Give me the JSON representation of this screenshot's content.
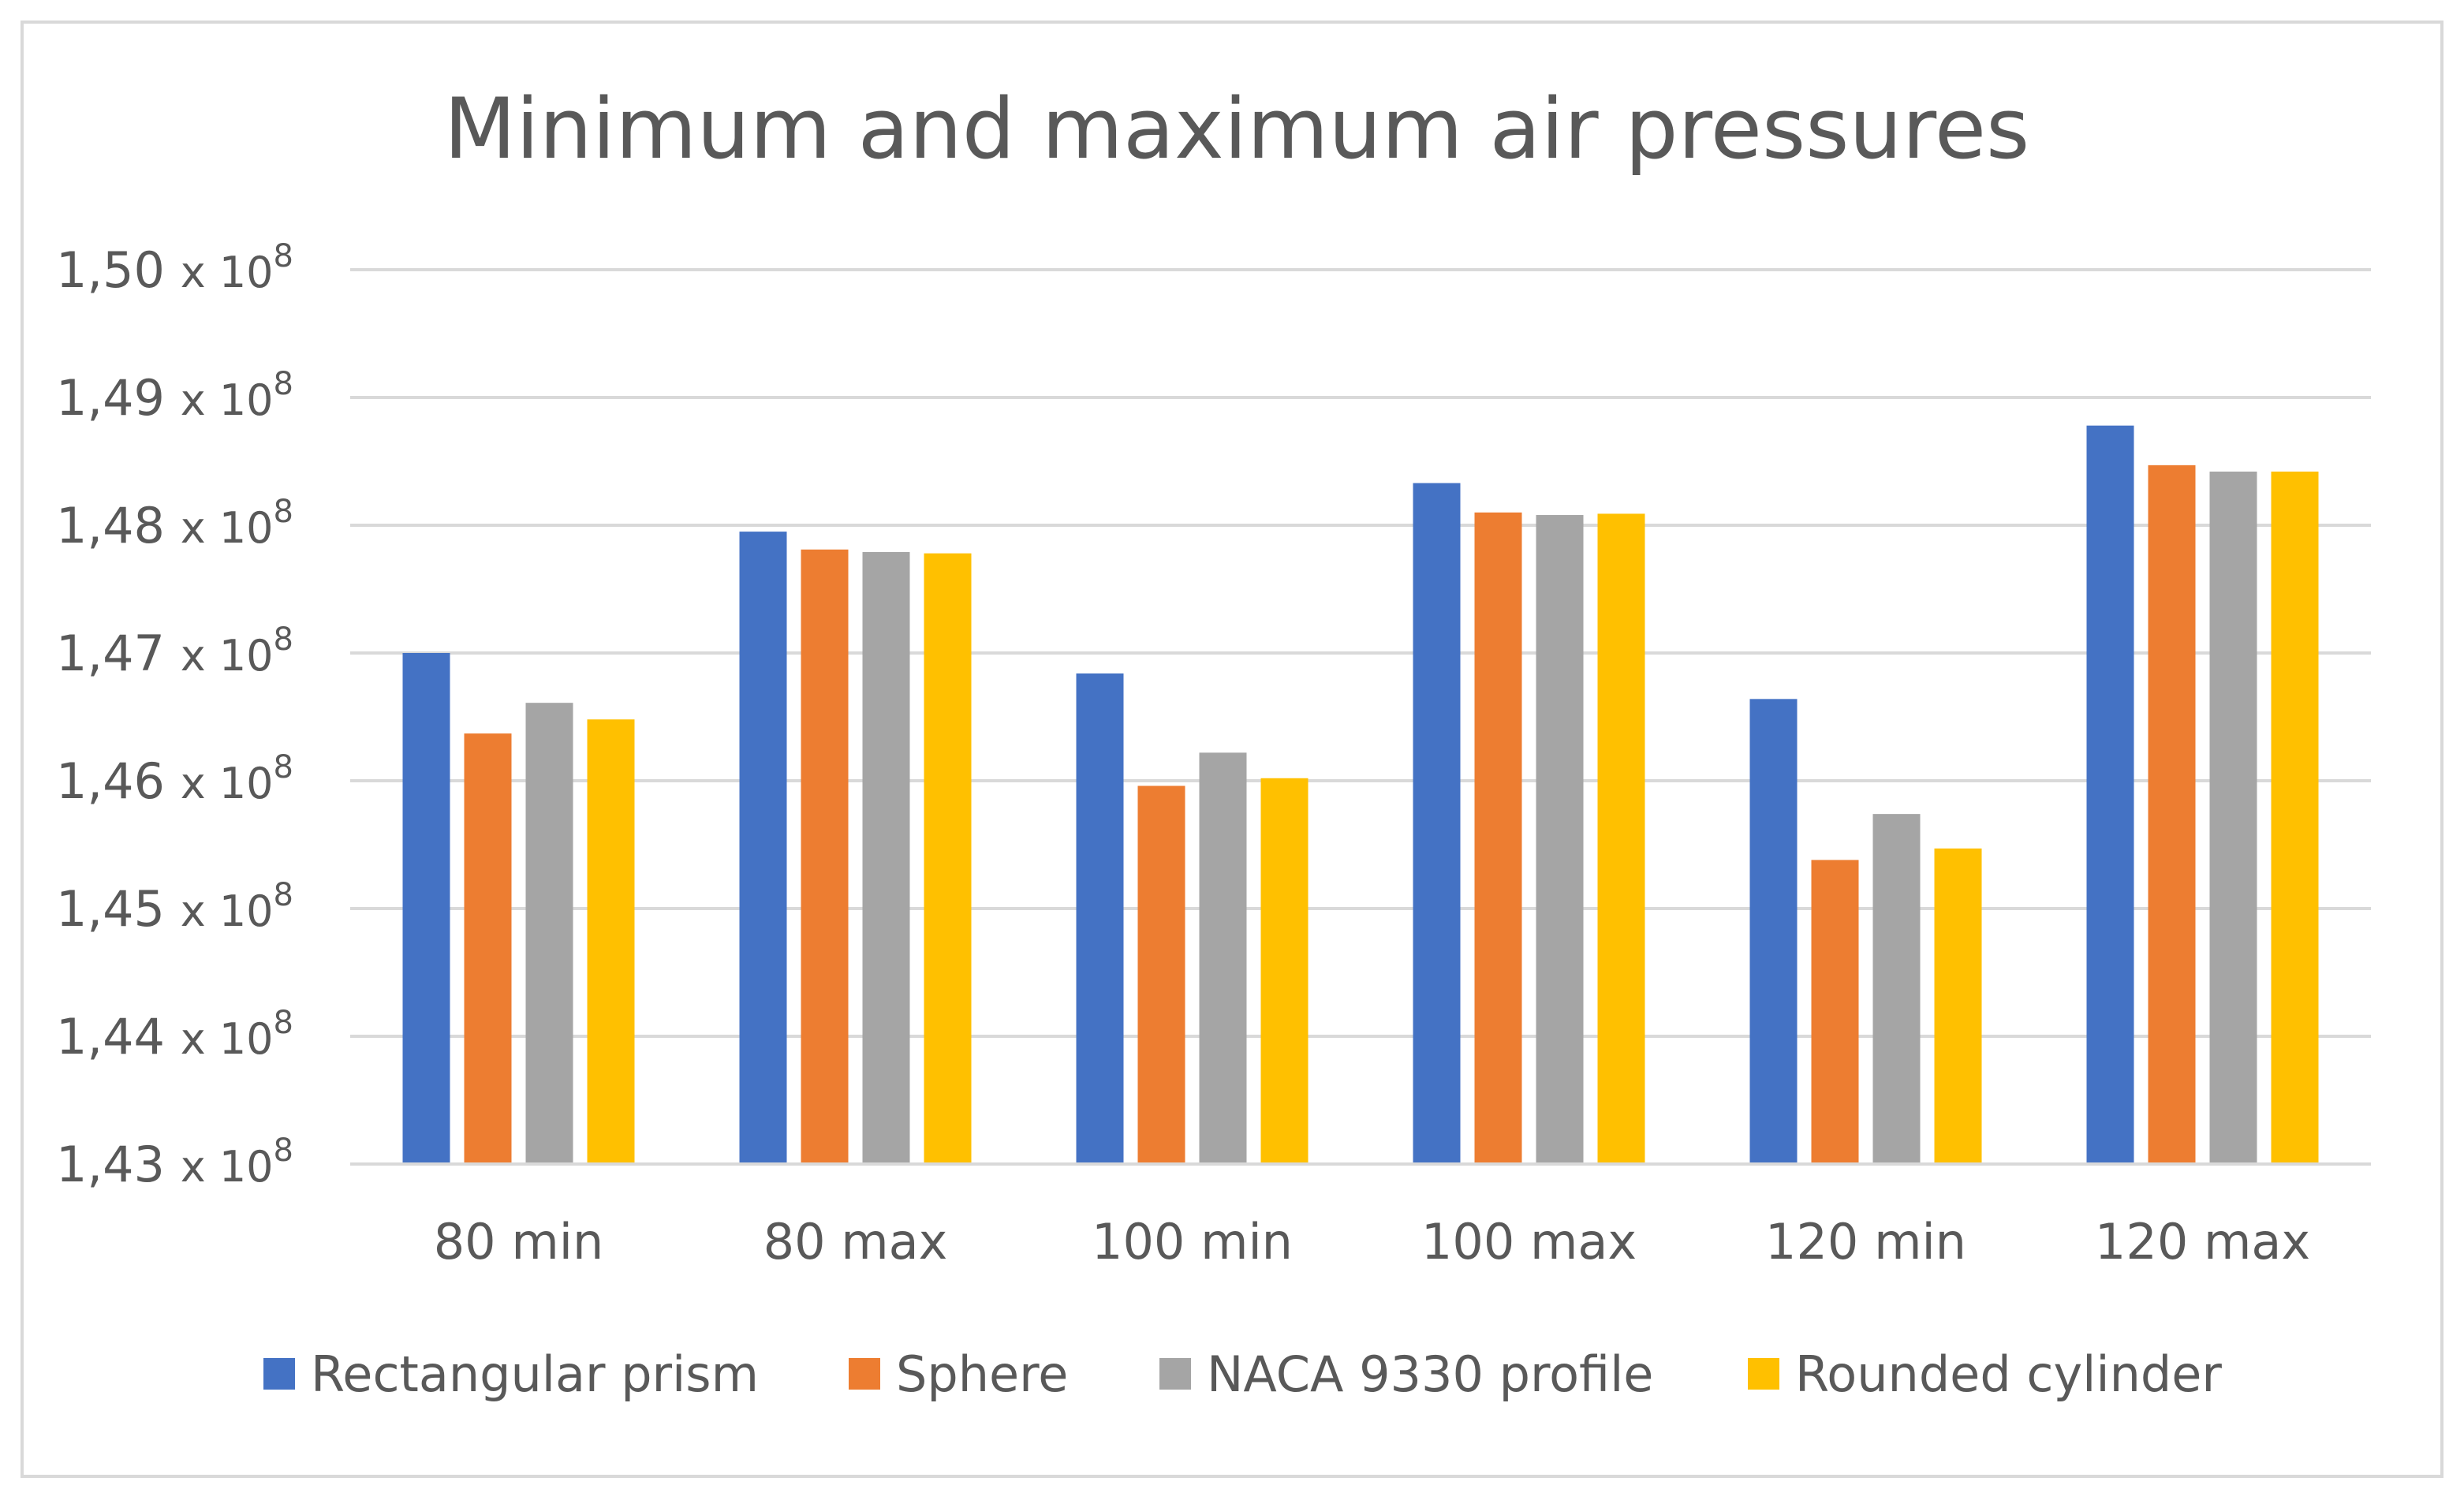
{
  "chart_data": {
    "type": "bar",
    "title": "Minimum and maximum air pressures",
    "xlabel": "",
    "ylabel": "",
    "categories": [
      "80 min",
      "80 max",
      "100 min",
      "100 max",
      "120 min",
      "120 max"
    ],
    "ylim": [
      143000000,
      150000000
    ],
    "grid": true,
    "legend_position": "bottom",
    "y_ticks": [
      {
        "value": 143000000,
        "mantissa": "1,43",
        "times": "x 10",
        "exponent": "8"
      },
      {
        "value": 144000000,
        "mantissa": "1,44",
        "times": "x 10",
        "exponent": "8"
      },
      {
        "value": 145000000,
        "mantissa": "1,45",
        "times": "x 10",
        "exponent": "8"
      },
      {
        "value": 146000000,
        "mantissa": "1,46",
        "times": "x 10",
        "exponent": "8"
      },
      {
        "value": 147000000,
        "mantissa": "1,47",
        "times": "x 10",
        "exponent": "8"
      },
      {
        "value": 148000000,
        "mantissa": "1,48",
        "times": "x 10",
        "exponent": "8"
      },
      {
        "value": 149000000,
        "mantissa": "1,49",
        "times": "x 10",
        "exponent": "8"
      },
      {
        "value": 150000000,
        "mantissa": "1,50",
        "times": "x 10",
        "exponent": "8"
      }
    ],
    "series": [
      {
        "name": "Rectangular prism",
        "color": "#4472c4",
        "values": [
          147000000,
          147950000,
          146840000,
          148330000,
          146640000,
          148780000
        ]
      },
      {
        "name": "Sphere",
        "color": "#ed7d31",
        "values": [
          146370000,
          147810000,
          145960000,
          148100000,
          145380000,
          148470000
        ]
      },
      {
        "name": "NACA 9330 profile",
        "color": "#a5a5a5",
        "values": [
          146610000,
          147790000,
          146220000,
          148080000,
          145740000,
          148420000
        ]
      },
      {
        "name": "Rounded cylinder",
        "color": "#ffc000",
        "values": [
          146480000,
          147780000,
          146020000,
          148090000,
          145470000,
          148420000
        ]
      }
    ]
  }
}
